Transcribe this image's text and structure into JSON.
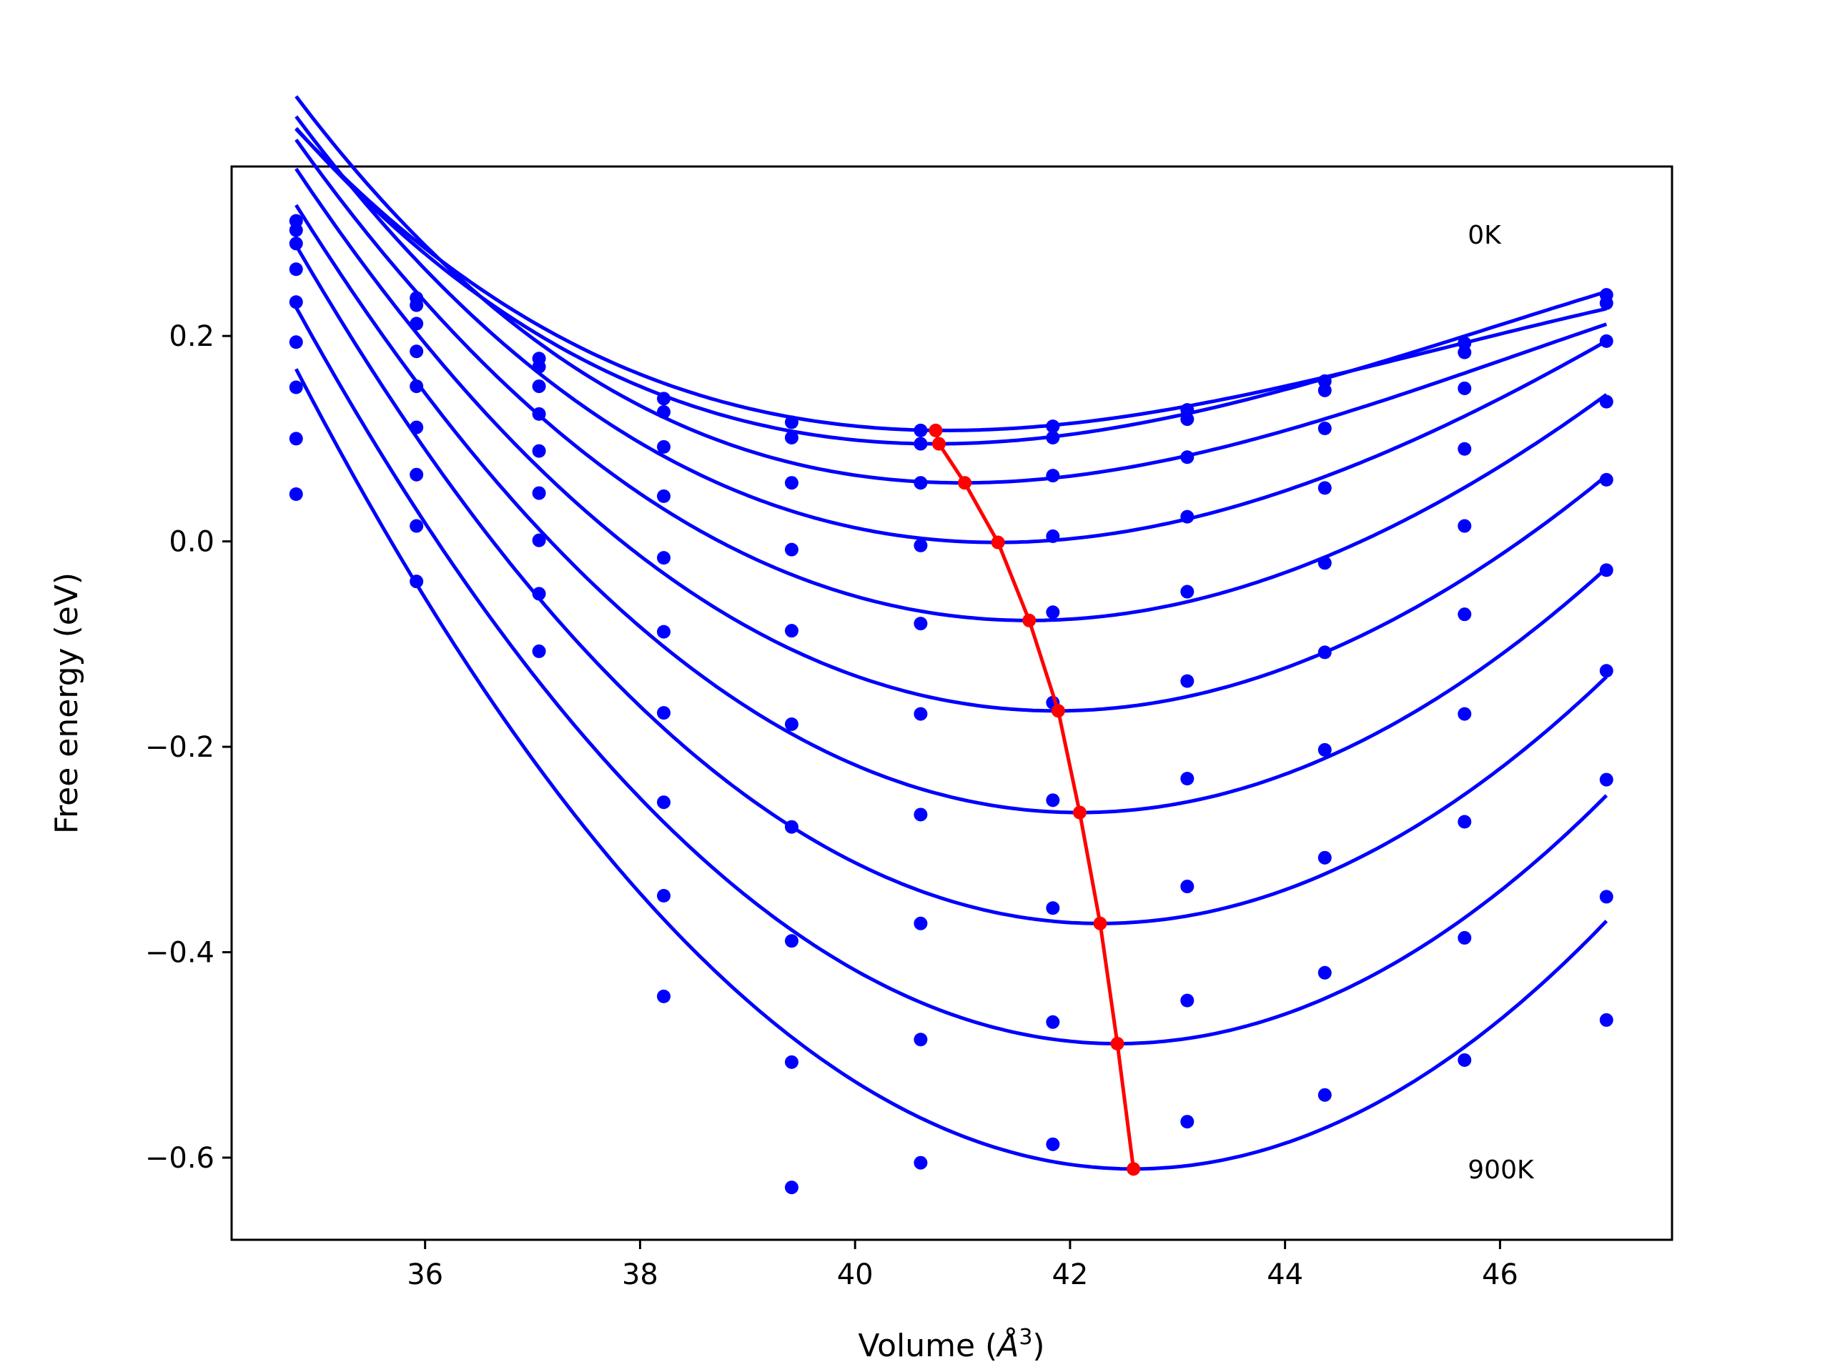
{
  "chart_data": {
    "type": "line",
    "xlabel_main": "Volume (",
    "xlabel_unit": "Å",
    "xlabel_exp": "3",
    "xlabel_close": ")",
    "ylabel": "Free energy (eV)",
    "xlim": [
      34.2,
      47.6
    ],
    "ylim": [
      -0.68,
      0.365
    ],
    "xticks": [
      36,
      38,
      40,
      42,
      44,
      46
    ],
    "yticks": [
      -0.6,
      -0.4,
      -0.2,
      0.0,
      0.2
    ],
    "ytick_labels": [
      "−0.6",
      "−0.4",
      "−0.2",
      "0.0",
      "0.2"
    ],
    "grid": false,
    "legend": "none",
    "annotations": [
      {
        "text": "0K",
        "x": 45.7,
        "y": 0.29
      },
      {
        "text": "900K",
        "x": 45.7,
        "y": -0.62
      }
    ],
    "colors": {
      "points": "#0000ff",
      "curves": "#0000ff",
      "equilibrium": "#ff0000"
    },
    "volumes": [
      34.8,
      35.92,
      37.06,
      38.22,
      39.41,
      40.61,
      41.84,
      43.09,
      44.37,
      45.67,
      46.99
    ],
    "series": [
      {
        "values": [
          0.312,
          0.237,
          0.178,
          0.139,
          0.116,
          0.108,
          0.112,
          0.128,
          0.156,
          0.193,
          0.24
        ]
      },
      {
        "values": [
          0.303,
          0.23,
          0.17,
          0.126,
          0.101,
          0.095,
          0.101,
          0.119,
          0.147,
          0.184,
          0.232
        ]
      },
      {
        "values": [
          0.29,
          0.212,
          0.151,
          0.092,
          0.057,
          0.057,
          0.064,
          0.082,
          0.11,
          0.149,
          0.195
        ]
      },
      {
        "values": [
          0.265,
          0.185,
          0.124,
          0.044,
          -0.008,
          -0.004,
          0.005,
          0.024,
          0.052,
          0.09,
          0.136
        ]
      },
      {
        "values": [
          0.233,
          0.151,
          0.088,
          -0.016,
          -0.087,
          -0.08,
          -0.069,
          -0.049,
          -0.021,
          0.015,
          0.06
        ]
      },
      {
        "values": [
          0.194,
          0.111,
          0.047,
          -0.088,
          -0.178,
          -0.168,
          -0.157,
          -0.136,
          -0.108,
          -0.071,
          -0.028
        ]
      },
      {
        "values": [
          0.15,
          0.065,
          0.001,
          -0.167,
          -0.278,
          -0.266,
          -0.252,
          -0.231,
          -0.203,
          -0.168,
          -0.126
        ]
      },
      {
        "values": [
          0.1,
          0.015,
          -0.051,
          -0.254,
          -0.389,
          -0.372,
          -0.357,
          -0.336,
          -0.308,
          -0.273,
          -0.232
        ]
      },
      {
        "values": [
          0.046,
          -0.039,
          -0.107,
          -0.345,
          -0.507,
          -0.485,
          -0.468,
          -0.447,
          -0.42,
          -0.386,
          -0.346
        ]
      },
      {
        "values": [
          null,
          null,
          null,
          -0.443,
          -0.629,
          -0.605,
          -0.587,
          -0.565,
          -0.539,
          -0.505,
          -0.466
        ]
      }
    ],
    "fit_curves": [
      {
        "v0": 40.85,
        "e0": 0.108,
        "a": 0.0056,
        "b": 0.004,
        "x_start": 34.8
      },
      {
        "v0": 40.75,
        "e0": 0.095,
        "a": 0.0063,
        "b": 0.004,
        "x_start": 34.8
      },
      {
        "v0": 41.0,
        "e0": 0.057,
        "a": 0.007,
        "b": 0.0045,
        "x_start": 34.8
      },
      {
        "v0": 41.32,
        "e0": -0.001,
        "a": 0.0078,
        "b": 0.003,
        "x_start": 34.8
      },
      {
        "v0": 41.62,
        "e0": -0.077,
        "a": 0.0087,
        "b": 0.002,
        "x_start": 34.8
      },
      {
        "v0": 41.87,
        "e0": -0.165,
        "a": 0.0095,
        "b": 0.0015,
        "x_start": 34.8
      },
      {
        "v0": 42.09,
        "e0": -0.264,
        "a": 0.0104,
        "b": 0.001,
        "x_start": 34.8
      },
      {
        "v0": 42.28,
        "e0": -0.372,
        "a": 0.0112,
        "b": 0.0008,
        "x_start": 34.8
      },
      {
        "v0": 42.44,
        "e0": -0.489,
        "a": 0.0119,
        "b": 0.0005,
        "x_start": 34.8
      },
      {
        "v0": 42.59,
        "e0": -0.611,
        "a": 0.0126,
        "b": 0.0003,
        "x_start": 34.8
      }
    ],
    "equilibrium": {
      "x": [
        40.75,
        40.78,
        41.02,
        41.33,
        41.62,
        41.89,
        42.09,
        42.28,
        42.44,
        42.59
      ],
      "y": [
        0.108,
        0.095,
        0.057,
        -0.001,
        -0.077,
        -0.165,
        -0.264,
        -0.372,
        -0.489,
        -0.611
      ]
    }
  }
}
